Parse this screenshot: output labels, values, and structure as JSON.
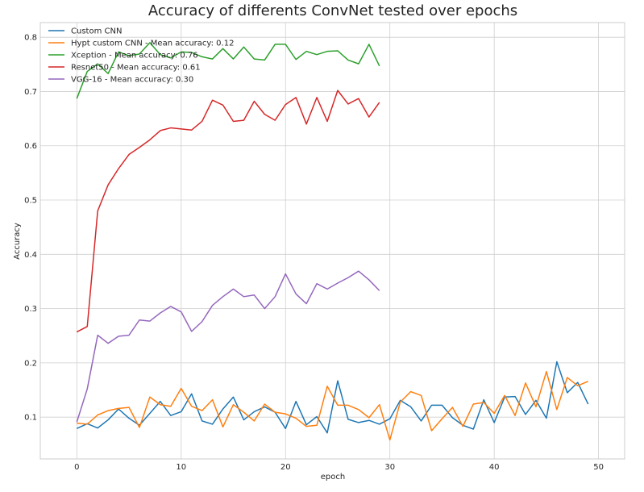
{
  "chart_data": {
    "type": "line",
    "title": "Accuracy of differents ConvNet tested over epochs",
    "xlabel": "epoch",
    "ylabel": "Accuracy",
    "xlim": [
      -3.5,
      52.5
    ],
    "ylim": [
      0.023,
      0.827
    ],
    "xticks": [
      0,
      10,
      20,
      30,
      40,
      50
    ],
    "yticks": [
      0.1,
      0.2,
      0.3,
      0.4,
      0.5,
      0.6,
      0.7,
      0.8
    ],
    "grid": true,
    "legend_position": "top-left",
    "series": [
      {
        "name": "Custom CNN",
        "color": "#1f77b4",
        "x": [
          0,
          1,
          2,
          3,
          4,
          5,
          6,
          7,
          8,
          9,
          10,
          11,
          12,
          13,
          14,
          15,
          16,
          17,
          18,
          19,
          20,
          21,
          22,
          23,
          24,
          25,
          26,
          27,
          28,
          29,
          30,
          31,
          32,
          33,
          34,
          35,
          36,
          37,
          38,
          39,
          40,
          41,
          42,
          43,
          44,
          45,
          46,
          47,
          48,
          49
        ],
        "values": [
          0.079,
          0.088,
          0.08,
          0.095,
          0.115,
          0.098,
          0.085,
          0.107,
          0.129,
          0.103,
          0.11,
          0.143,
          0.093,
          0.087,
          0.115,
          0.137,
          0.095,
          0.11,
          0.119,
          0.109,
          0.079,
          0.129,
          0.086,
          0.101,
          0.071,
          0.167,
          0.096,
          0.09,
          0.094,
          0.087,
          0.097,
          0.131,
          0.119,
          0.093,
          0.122,
          0.122,
          0.099,
          0.085,
          0.078,
          0.132,
          0.09,
          0.137,
          0.138,
          0.105,
          0.131,
          0.098,
          0.202,
          0.145,
          0.164,
          0.124
        ]
      },
      {
        "name": "Hypt custom CNN - Mean accuracy: 0.12",
        "color": "#ff7f0e",
        "x": [
          0,
          1,
          2,
          3,
          4,
          5,
          6,
          7,
          8,
          9,
          10,
          11,
          12,
          13,
          14,
          15,
          16,
          17,
          18,
          19,
          20,
          21,
          22,
          23,
          24,
          25,
          26,
          27,
          28,
          29,
          30,
          31,
          32,
          33,
          34,
          35,
          36,
          37,
          38,
          39,
          40,
          41,
          42,
          43,
          44,
          45,
          46,
          47,
          48,
          49
        ],
        "values": [
          0.089,
          0.087,
          0.104,
          0.112,
          0.116,
          0.118,
          0.081,
          0.137,
          0.123,
          0.12,
          0.153,
          0.12,
          0.112,
          0.132,
          0.082,
          0.123,
          0.109,
          0.093,
          0.124,
          0.109,
          0.106,
          0.098,
          0.083,
          0.085,
          0.157,
          0.122,
          0.122,
          0.114,
          0.099,
          0.123,
          0.058,
          0.128,
          0.147,
          0.14,
          0.075,
          0.097,
          0.118,
          0.083,
          0.124,
          0.127,
          0.107,
          0.14,
          0.103,
          0.163,
          0.119,
          0.184,
          0.114,
          0.173,
          0.158,
          0.166
        ]
      },
      {
        "name": "Xception - Mean accuracy: 0.76",
        "color": "#2ca02c",
        "x": [
          0,
          1,
          2,
          3,
          4,
          5,
          6,
          7,
          8,
          9,
          10,
          11,
          12,
          13,
          14,
          15,
          16,
          17,
          18,
          19,
          20,
          21,
          22,
          23,
          24,
          25,
          26,
          27,
          28,
          29
        ],
        "values": [
          0.687,
          0.737,
          0.751,
          0.733,
          0.773,
          0.766,
          0.769,
          0.79,
          0.768,
          0.762,
          0.773,
          0.772,
          0.764,
          0.76,
          0.779,
          0.76,
          0.782,
          0.76,
          0.758,
          0.787,
          0.787,
          0.759,
          0.774,
          0.768,
          0.774,
          0.775,
          0.758,
          0.751,
          0.787,
          0.747
        ]
      },
      {
        "name": "Resnet50 - Mean accuracy: 0.61",
        "color": "#d62728",
        "x": [
          0,
          1,
          2,
          3,
          4,
          5,
          6,
          7,
          8,
          9,
          10,
          11,
          12,
          13,
          14,
          15,
          16,
          17,
          18,
          19,
          20,
          21,
          22,
          23,
          24,
          25,
          26,
          27,
          28,
          29
        ],
        "values": [
          0.257,
          0.267,
          0.48,
          0.528,
          0.558,
          0.584,
          0.597,
          0.611,
          0.628,
          0.633,
          0.631,
          0.629,
          0.645,
          0.684,
          0.675,
          0.645,
          0.647,
          0.682,
          0.658,
          0.647,
          0.676,
          0.689,
          0.64,
          0.689,
          0.645,
          0.702,
          0.677,
          0.687,
          0.653,
          0.68
        ]
      },
      {
        "name": "VGG-16 - Mean accuracy: 0.30",
        "color": "#9467bd",
        "x": [
          0,
          1,
          2,
          3,
          4,
          5,
          6,
          7,
          8,
          9,
          10,
          11,
          12,
          13,
          14,
          15,
          16,
          17,
          18,
          19,
          20,
          21,
          22,
          23,
          24,
          25,
          26,
          27,
          28,
          29
        ],
        "values": [
          0.091,
          0.152,
          0.251,
          0.236,
          0.249,
          0.251,
          0.279,
          0.277,
          0.292,
          0.304,
          0.294,
          0.258,
          0.276,
          0.306,
          0.322,
          0.336,
          0.322,
          0.325,
          0.3,
          0.322,
          0.364,
          0.327,
          0.309,
          0.346,
          0.336,
          0.347,
          0.357,
          0.369,
          0.353,
          0.333
        ]
      }
    ]
  }
}
